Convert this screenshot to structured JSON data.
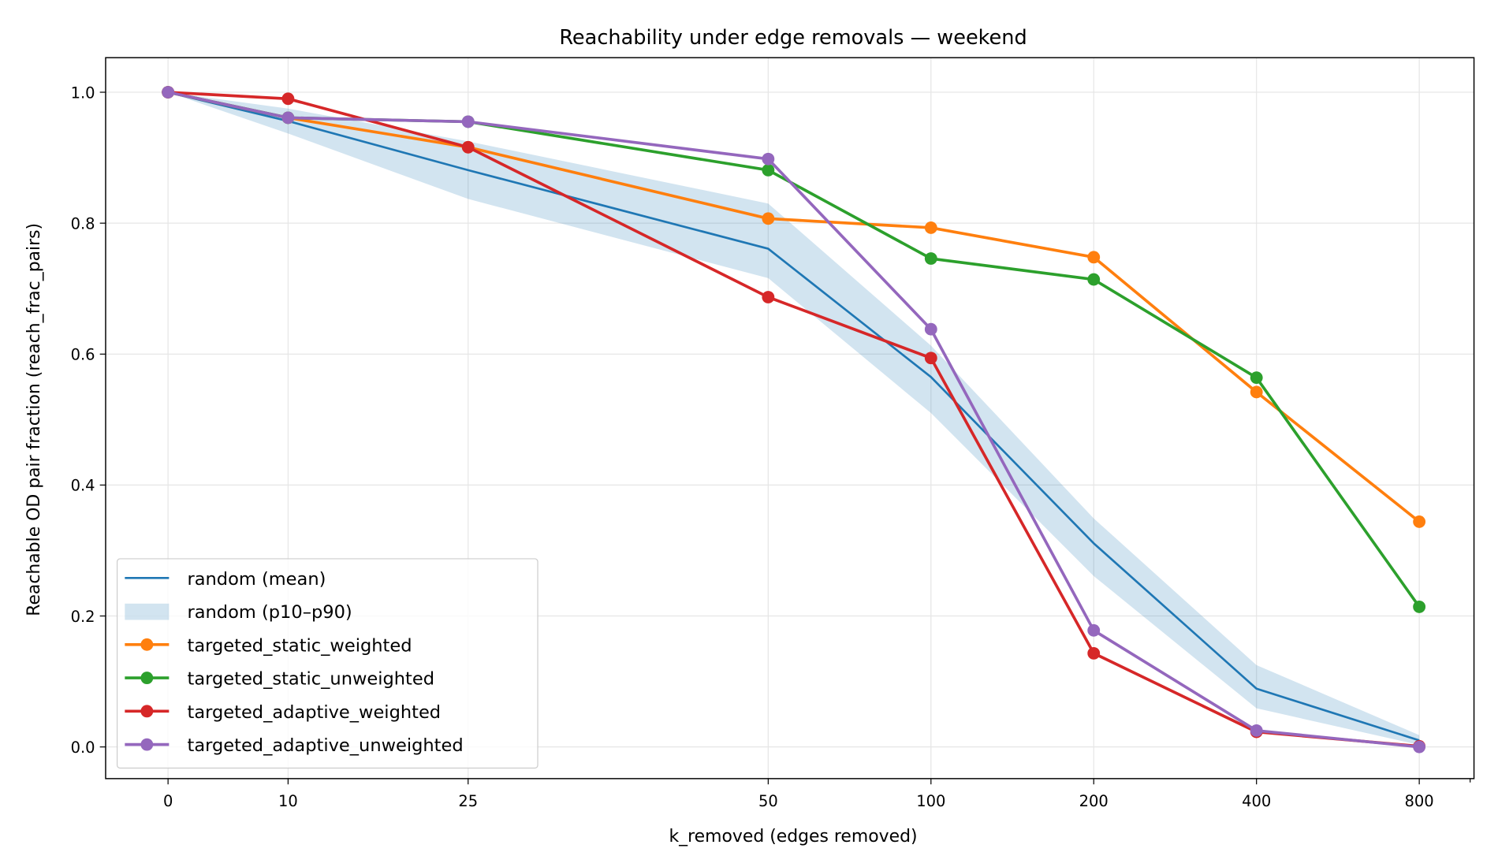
{
  "chart_data": {
    "type": "line",
    "title": "Reachability under edge removals — weekend",
    "xlabel": "k_removed (edges removed)",
    "ylabel": "Reachable OD pair fraction (reach_frac_pairs)",
    "x_scale": "symlog",
    "x": [
      0,
      10,
      25,
      50,
      100,
      200,
      400,
      800
    ],
    "x_tick_labels": [
      "0",
      "10",
      "25",
      "50",
      "100",
      "200",
      "400",
      "800"
    ],
    "ylim": [
      -0.05,
      1.05
    ],
    "y_ticks": [
      0.0,
      0.2,
      0.4,
      0.6,
      0.8,
      1.0
    ],
    "y_tick_labels": [
      "0.0",
      "0.2",
      "0.4",
      "0.6",
      "0.8",
      "1.0"
    ],
    "grid": true,
    "legend_position": "lower-left",
    "band": {
      "name": "random (p10–p90)",
      "color": "#1f77b4",
      "low": [
        1.0,
        0.937,
        0.837,
        0.716,
        0.51,
        0.261,
        0.059,
        0.003
      ],
      "high": [
        1.0,
        0.975,
        0.925,
        0.83,
        0.613,
        0.349,
        0.125,
        0.018
      ]
    },
    "series": [
      {
        "name": "random (mean)",
        "color": "#1f77b4",
        "markers": false,
        "values": [
          1.0,
          0.956,
          0.881,
          0.761,
          0.565,
          0.311,
          0.089,
          0.01
        ]
      },
      {
        "name": "targeted_static_weighted",
        "color": "#ff7f0e",
        "markers": true,
        "values": [
          1.0,
          0.961,
          0.916,
          0.807,
          0.793,
          0.748,
          0.542,
          0.344
        ]
      },
      {
        "name": "targeted_static_unweighted",
        "color": "#2ca02c",
        "markers": true,
        "values": [
          1.0,
          0.961,
          0.955,
          0.881,
          0.746,
          0.714,
          0.564,
          0.214
        ]
      },
      {
        "name": "targeted_adaptive_weighted",
        "color": "#d62728",
        "markers": true,
        "values": [
          1.0,
          0.99,
          0.916,
          0.687,
          0.594,
          0.143,
          0.023,
          0.001
        ]
      },
      {
        "name": "targeted_adaptive_unweighted",
        "color": "#9467bd",
        "markers": true,
        "values": [
          1.0,
          0.961,
          0.955,
          0.898,
          0.638,
          0.178,
          0.025,
          0.0
        ]
      }
    ]
  }
}
